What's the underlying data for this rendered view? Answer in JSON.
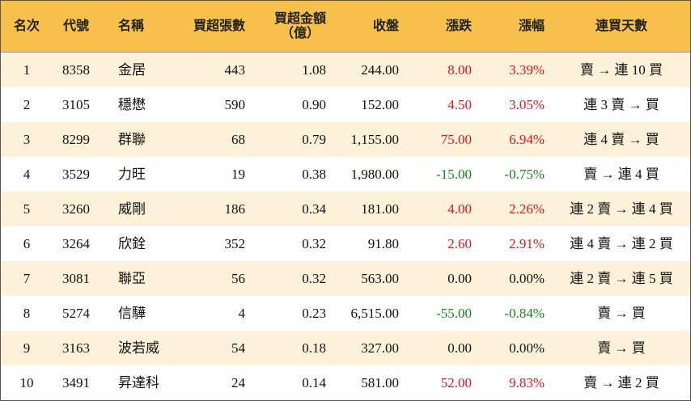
{
  "table": {
    "headers": [
      "名次",
      "代號",
      "名稱",
      "買超張數",
      "買超金額\n（億）",
      "收盤",
      "漲跌",
      "漲幅",
      "連買天數"
    ],
    "rows": [
      [
        "1",
        "8358",
        "金居",
        "443",
        "1.08",
        "244.00",
        "8.00",
        "3.39%",
        "賣 → 連 10 買"
      ],
      [
        "2",
        "3105",
        "穩懋",
        "590",
        "0.90",
        "152.00",
        "4.50",
        "3.05%",
        "連 3 賣 → 買"
      ],
      [
        "3",
        "8299",
        "群聯",
        "68",
        "0.79",
        "1,155.00",
        "75.00",
        "6.94%",
        "連 4 賣 → 買"
      ],
      [
        "4",
        "3529",
        "力旺",
        "19",
        "0.38",
        "1,980.00",
        "-15.00",
        "-0.75%",
        "賣 → 連 4 買"
      ],
      [
        "5",
        "3260",
        "威剛",
        "186",
        "0.34",
        "181.00",
        "4.00",
        "2.26%",
        "連 2 賣 → 連 4 買"
      ],
      [
        "6",
        "3264",
        "欣銓",
        "352",
        "0.32",
        "91.80",
        "2.60",
        "2.91%",
        "連 4 賣 → 連 2 買"
      ],
      [
        "7",
        "3081",
        "聯亞",
        "56",
        "0.32",
        "563.00",
        "0.00",
        "0.00%",
        "連 2 賣 → 連 5 買"
      ],
      [
        "8",
        "5274",
        "信驊",
        "4",
        "0.23",
        "6,515.00",
        "-55.00",
        "-0.84%",
        "賣 → 買"
      ],
      [
        "9",
        "3163",
        "波若威",
        "54",
        "0.18",
        "327.00",
        "0.00",
        "0.00%",
        "賣 → 買"
      ],
      [
        "10",
        "3491",
        "昇達科",
        "24",
        "0.14",
        "581.00",
        "52.00",
        "9.83%",
        "賣 → 連 2 買"
      ]
    ],
    "colors": {
      "header": "#f6c04a",
      "stripe": "#fdf2d9",
      "up": "#e8141b",
      "down": "#14891a"
    }
  }
}
